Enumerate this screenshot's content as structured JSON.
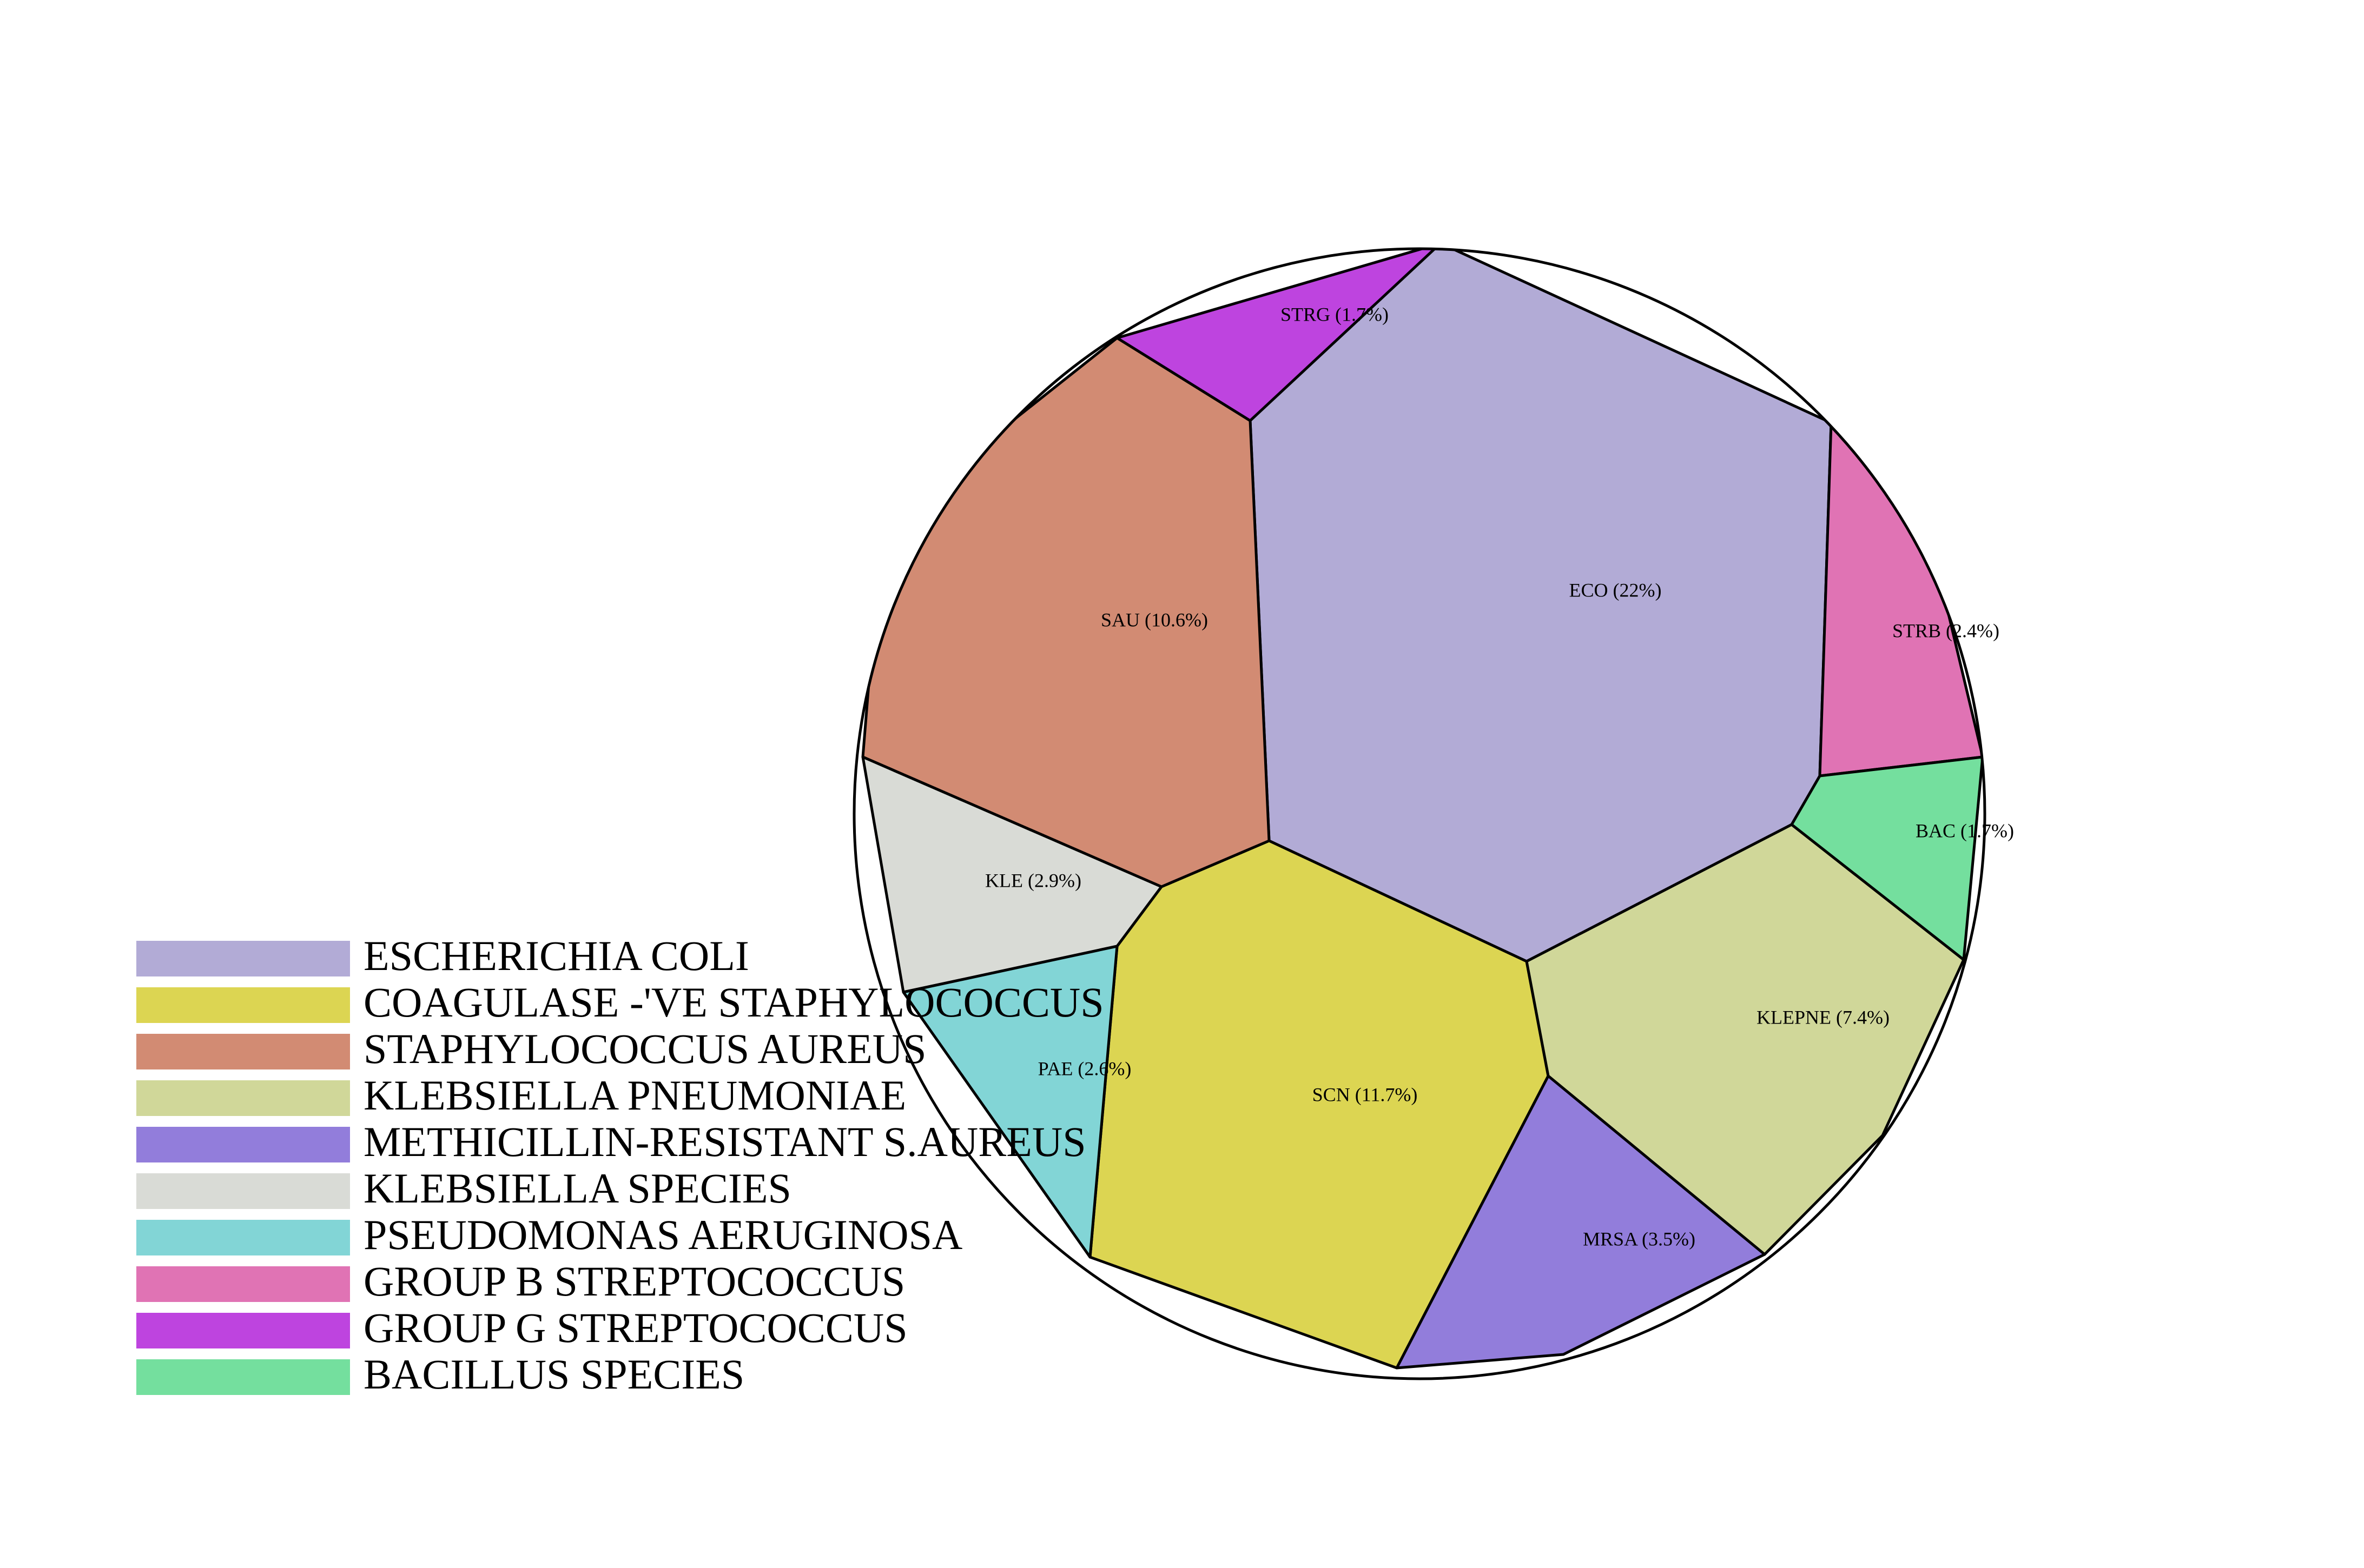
{
  "chart_data": {
    "type": "pie",
    "title": "",
    "legend_position": "bottom-left",
    "series": [
      {
        "code": "ECO",
        "name": "ESCHERICHIA COLI",
        "label": "ECO (22%)",
        "value": 22,
        "color": "#b2abd6"
      },
      {
        "code": "SCN",
        "name": "COAGULASE -'VE STAPHYLOCOCCUS",
        "label": "SCN (11.7%)",
        "value": 11.7,
        "color": "#dcd552"
      },
      {
        "code": "SAU",
        "name": "STAPHYLOCOCCUS AUREUS",
        "label": "SAU (10.6%)",
        "value": 10.6,
        "color": "#d28b73"
      },
      {
        "code": "KLEPNE",
        "name": "KLEBSIELLA PNEUMONIAE",
        "label": "KLEPNE (7.4%)",
        "value": 7.4,
        "color": "#d0d799"
      },
      {
        "code": "MRSA",
        "name": "METHICILLIN-RESISTANT S.AUREUS",
        "label": "MRSA (3.5%)",
        "value": 3.5,
        "color": "#927ddb"
      },
      {
        "code": "KLE",
        "name": "KLEBSIELLA SPECIES",
        "label": "KLE (2.9%)",
        "value": 2.9,
        "color": "#d9dbd6"
      },
      {
        "code": "PAE",
        "name": "PSEUDOMONAS AERUGINOSA",
        "label": "PAE (2.6%)",
        "value": 2.6,
        "color": "#82d5d6"
      },
      {
        "code": "STRB",
        "name": "GROUP B STREPTOCOCCUS",
        "label": "STRB (2.4%)",
        "value": 2.4,
        "color": "#e073b4"
      },
      {
        "code": "STRG",
        "name": "GROUP G STREPTOCOCCUS",
        "label": "STRG (1.7%)",
        "value": 1.7,
        "color": "#be44df"
      },
      {
        "code": "BAC",
        "name": "BACILLUS SPECIES",
        "label": "BAC (1.7%)",
        "value": 1.7,
        "color": "#74df9e"
      }
    ]
  }
}
